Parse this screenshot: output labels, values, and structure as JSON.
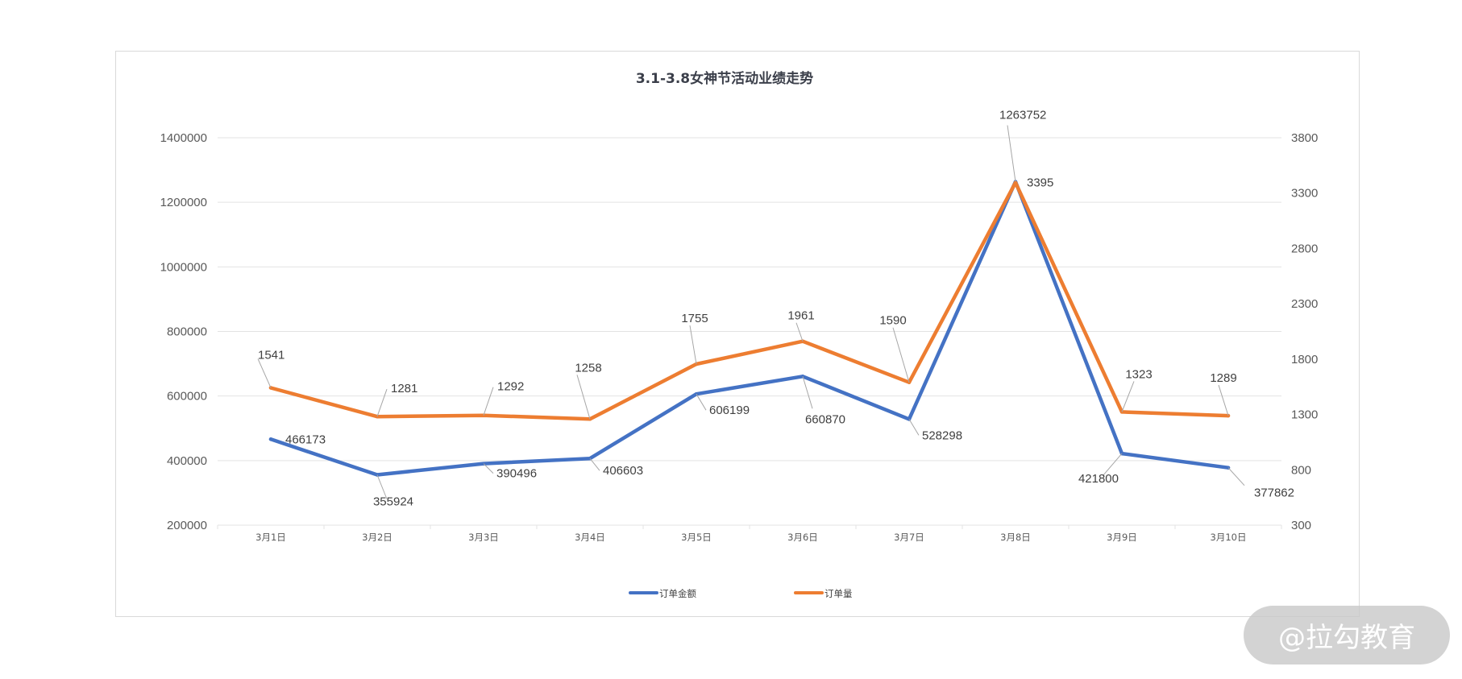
{
  "chart_data": {
    "type": "line",
    "title": "3.1-3.8女神节活动业绩走势",
    "categories": [
      "3月1日",
      "3月2日",
      "3月3日",
      "3月4日",
      "3月5日",
      "3月6日",
      "3月7日",
      "3月8日",
      "3月9日",
      "3月10日"
    ],
    "series": [
      {
        "name": "订单金额",
        "axis": "left",
        "color": "#4472c4",
        "values": [
          466173,
          355924,
          390496,
          406603,
          606199,
          660870,
          528298,
          1263752,
          421800,
          377862
        ]
      },
      {
        "name": "订单量",
        "axis": "right",
        "color": "#ed7d31",
        "values": [
          1541,
          1281,
          1292,
          1258,
          1755,
          1961,
          1590,
          3395,
          1323,
          1289
        ]
      }
    ],
    "y_left": {
      "min": 200000,
      "max": 1400000,
      "ticks": [
        "200000",
        "400000",
        "600000",
        "800000",
        "1000000",
        "1200000",
        "1400000"
      ]
    },
    "y_right": {
      "min": 300,
      "max": 3800,
      "ticks": [
        "300",
        "800",
        "1300",
        "1800",
        "2300",
        "2800",
        "3300",
        "3800"
      ]
    },
    "grid": true,
    "legend": "bottom"
  },
  "watermark": "@拉勾教育"
}
